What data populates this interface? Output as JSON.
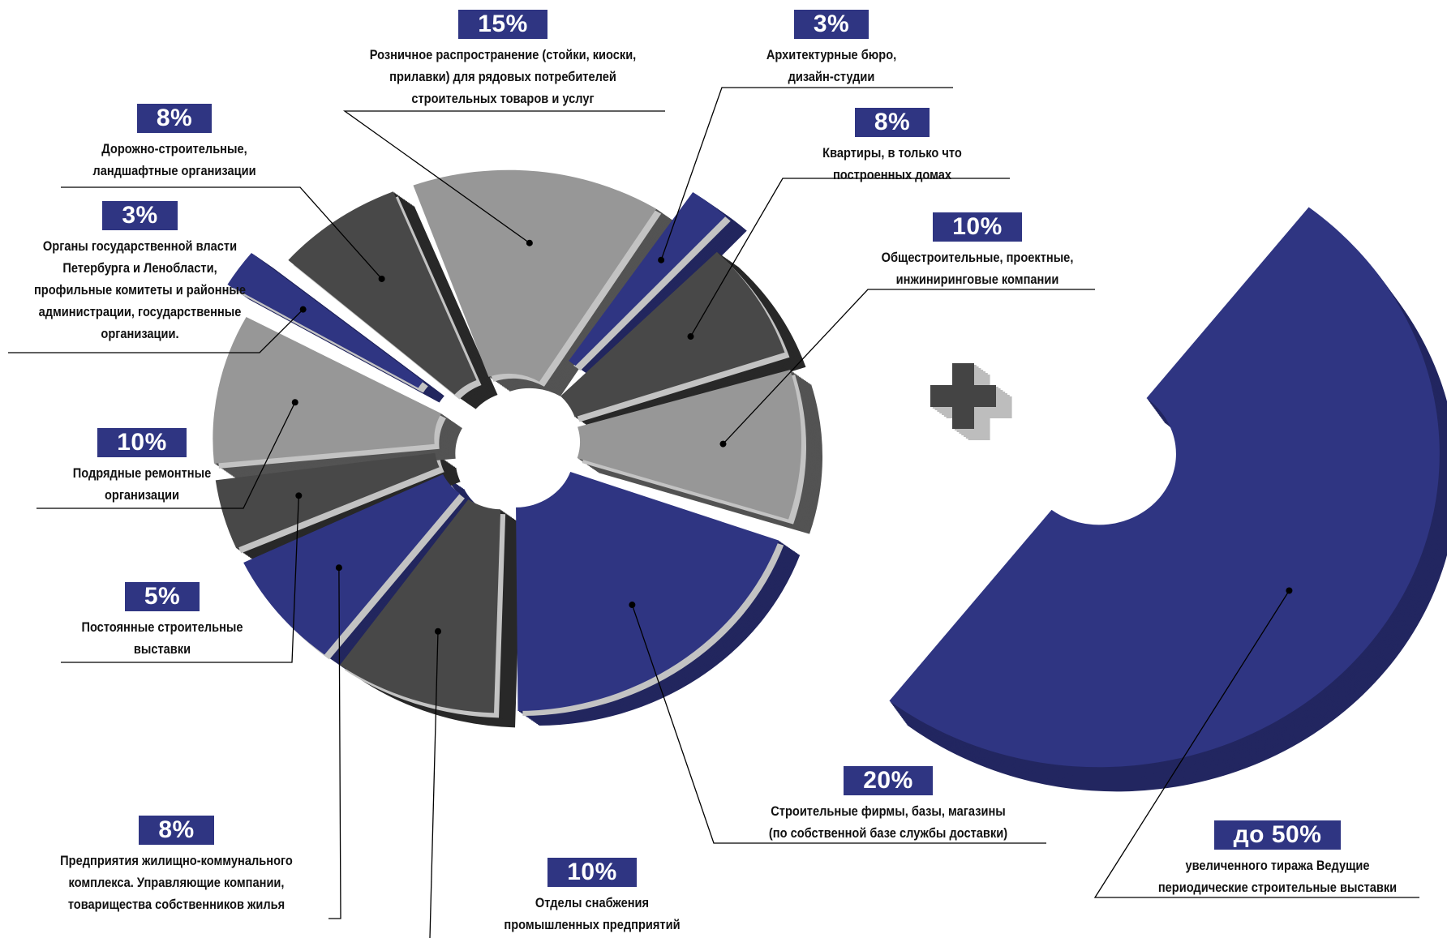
{
  "chart_data": {
    "type": "pie",
    "title": "",
    "segments": [
      {
        "value": 15,
        "value_label": "15%",
        "label_lines": [
          "Розничное распространение (стойки, киоски,",
          "прилавки) для рядовых потребителей",
          "строительных товаров и услуг"
        ],
        "color": "#979797"
      },
      {
        "value": 3,
        "value_label": "3%",
        "label_lines": [
          "Архитектурные бюро,",
          "дизайн-студии"
        ],
        "color": "#2f3582"
      },
      {
        "value": 8,
        "value_label": "8%",
        "label_lines": [
          "Квартиры, в только что",
          "построенных домах"
        ],
        "color": "#484848"
      },
      {
        "value": 10,
        "value_label": "10%",
        "label_lines": [
          "Общестроительные, проектные,",
          "инжиниринговые компании"
        ],
        "color": "#979797"
      },
      {
        "value": 20,
        "value_label": "20%",
        "label_lines": [
          "Строительные фирмы, базы, магазины",
          "(по собственной базе службы доставки)"
        ],
        "color": "#2f3582"
      },
      {
        "value": 10,
        "value_label": "10%",
        "label_lines": [
          "Отделы снабжения",
          "промышленных предприятий"
        ],
        "color": "#484848"
      },
      {
        "value": 8,
        "value_label": "8%",
        "label_lines": [
          "Предприятия жилищно-коммунального",
          "комплекса. Управляющие компании,",
          "товарищества собственников жилья"
        ],
        "color": "#2f3582"
      },
      {
        "value": 5,
        "value_label": "5%",
        "label_lines": [
          "Постоянные строительные",
          "выставки"
        ],
        "color": "#484848"
      },
      {
        "value": 10,
        "value_label": "10%",
        "label_lines": [
          "Подрядные ремонтные",
          "организации"
        ],
        "color": "#979797"
      },
      {
        "value": 3,
        "value_label": "3%",
        "label_lines": [
          "Органы государственной власти",
          "Петербурга и Ленобласти,",
          "профильные комитеты и районные",
          "администрации, государственные",
          "организации."
        ],
        "color": "#2f3582"
      },
      {
        "value": 8,
        "value_label": "8%",
        "label_lines": [
          "Дорожно-строительные,",
          "ландшафтные организации"
        ],
        "color": "#484848"
      }
    ],
    "extra": {
      "value": 50,
      "value_label": "до 50%",
      "label_lines": [
        "увеличенного тиража Ведущие",
        "периодические строительные выставки"
      ],
      "color": "#2f3582"
    },
    "plus_symbol": "plus-icon"
  },
  "colors": {
    "navy": "#2f3582",
    "navy_dark": "#222660",
    "gray_light": "#979797",
    "gray_dark": "#484848",
    "gray_darkest": "#262626",
    "silver": "#c3c3c3"
  }
}
